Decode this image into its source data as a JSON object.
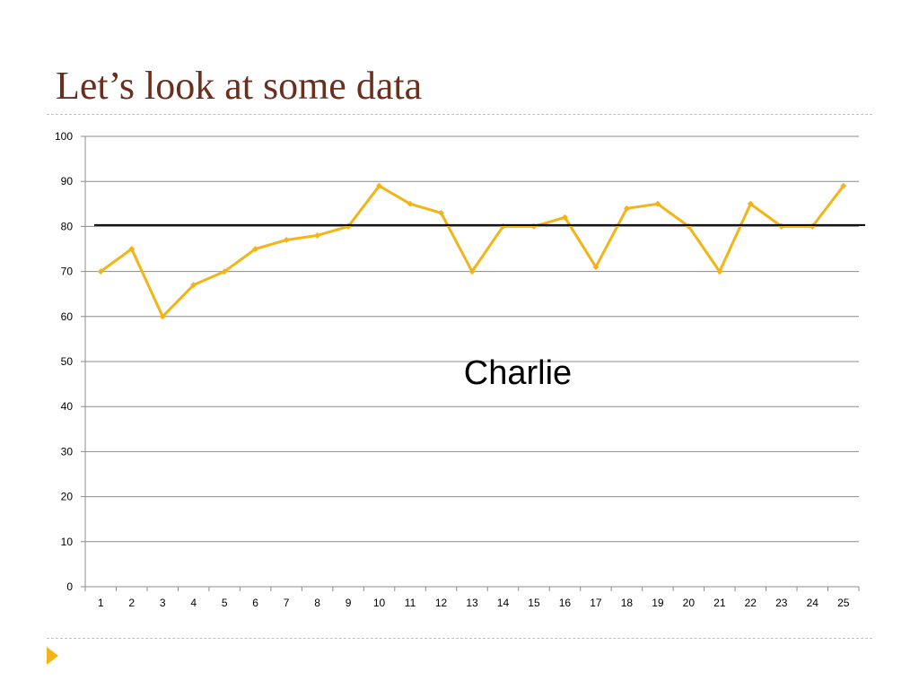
{
  "slide": {
    "title": "Let’s look at some data"
  },
  "colors": {
    "title": "#6b2f1e",
    "accent": "#f2b416",
    "series_line": "#f2b416",
    "reference_line": "#000000",
    "gridline": "#8c8c8c"
  },
  "icons": {
    "bullet": "play-triangle-icon"
  },
  "chart_data": {
    "type": "line",
    "title": "",
    "xlabel": "",
    "ylabel": "",
    "categories": [
      "1",
      "2",
      "3",
      "4",
      "5",
      "6",
      "7",
      "8",
      "9",
      "10",
      "11",
      "12",
      "13",
      "14",
      "15",
      "16",
      "17",
      "18",
      "19",
      "20",
      "21",
      "22",
      "23",
      "24",
      "25"
    ],
    "series": [
      {
        "values": [
          70,
          75,
          60,
          67,
          70,
          75,
          77,
          78,
          80,
          89,
          85,
          83,
          70,
          80,
          80,
          82,
          71,
          84,
          85,
          80,
          70,
          85,
          80,
          80,
          89
        ]
      }
    ],
    "reference_line": {
      "value": 80.3
    },
    "ylim": [
      0,
      100
    ],
    "yticks": [
      0,
      10,
      20,
      30,
      40,
      50,
      60,
      70,
      80,
      90,
      100
    ],
    "grid": true,
    "legend": "none",
    "annotation": {
      "text": "Charlie"
    }
  }
}
